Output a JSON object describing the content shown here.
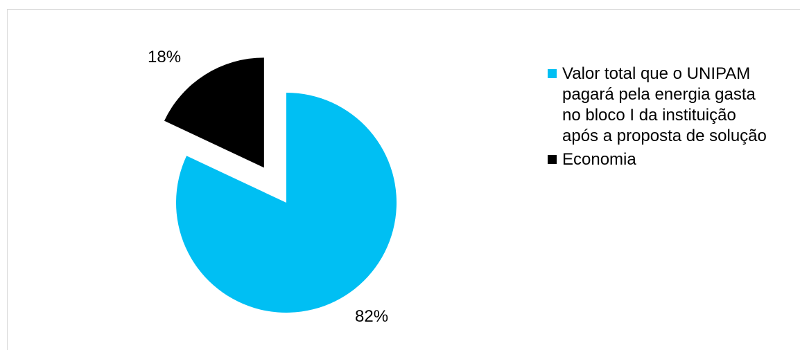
{
  "chart_data": {
    "type": "pie",
    "slices": [
      {
        "label": "Valor total que o UNIPAM pagará pela energia gasta no bloco I da instituição após a proposta de solução",
        "value": 82,
        "value_label": "82%",
        "color": "#00bff3",
        "exploded": false
      },
      {
        "label": "Economia",
        "value": 18,
        "value_label": "18%",
        "color": "#000000",
        "exploded": true
      }
    ],
    "start_angle": "12 o'clock",
    "direction": "clockwise",
    "legend_position": "right"
  }
}
